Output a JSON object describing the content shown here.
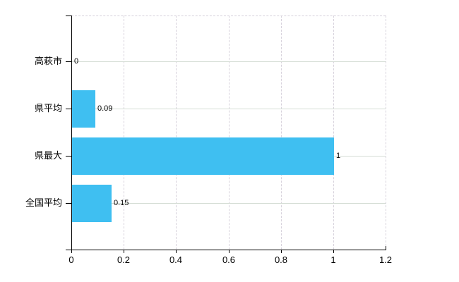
{
  "chart_data": {
    "type": "bar",
    "orientation": "horizontal",
    "title": "",
    "xlabel": "",
    "ylabel": "",
    "categories": [
      "高萩市",
      "県平均",
      "県最大",
      "全国平均"
    ],
    "values": [
      0,
      0.09,
      1,
      0.15
    ],
    "value_labels": [
      "0",
      "0.09",
      "1",
      "0.15"
    ],
    "x_ticks": [
      0,
      0.2,
      0.4,
      0.6,
      0.8,
      1,
      1.2
    ],
    "x_tick_labels": [
      "0",
      "0.2",
      "0.4",
      "0.6",
      "0.8",
      "1",
      "1.2"
    ],
    "xlim": [
      0,
      1.2
    ],
    "legend_position": "none",
    "grid": true,
    "bar_color": "#3fbff1"
  },
  "colors": {
    "background": "#ffffff",
    "axis": "#000000",
    "horizontal_grid": "#d5ddd5",
    "vertical_grid": "#d7d2dc",
    "text": "#000000"
  }
}
